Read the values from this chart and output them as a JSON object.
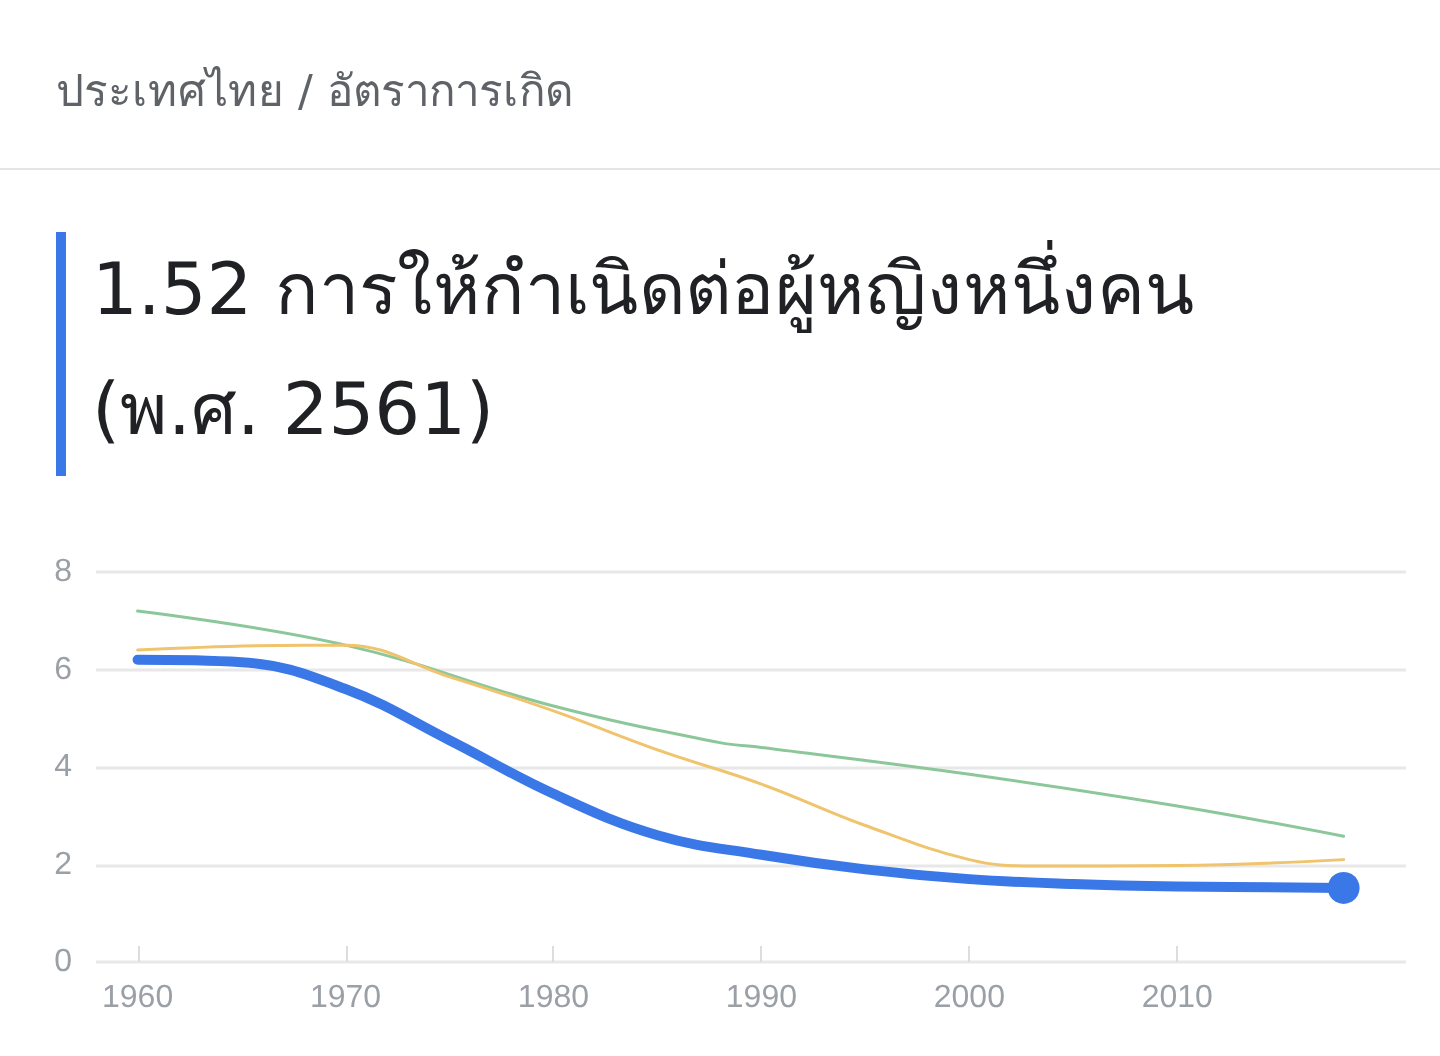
{
  "chart_data": {
    "type": "line",
    "subtitle": "ประเทศไทย / อัตราการเกิด",
    "title": "1.52 การให้กำเนิดต่อผู้หญิงหนึ่งคน (พ.ศ. 2561)",
    "series": [
      {
        "color": "#8cc79a",
        "x": [
          1960,
          1970,
          1980,
          1988,
          1990,
          2000,
          2010,
          2018
        ],
        "values": [
          7.2,
          6.5,
          5.25,
          4.5,
          4.4,
          3.85,
          3.2,
          2.58
        ]
      },
      {
        "color": "#f0c36d",
        "x": [
          1960,
          1968,
          1970,
          1975,
          1980,
          1985,
          1990,
          1995,
          2000,
          2003,
          2010,
          2018
        ],
        "values": [
          6.4,
          6.5,
          6.5,
          5.85,
          5.15,
          4.35,
          3.65,
          2.8,
          2.1,
          1.97,
          1.98,
          2.1
        ]
      },
      {
        "color": "#3b78e7",
        "x": [
          1960,
          1965,
          1970,
          1975,
          1980,
          1985,
          1990,
          1995,
          2000,
          2005,
          2010,
          2018
        ],
        "values": [
          6.2,
          6.15,
          5.6,
          4.55,
          3.45,
          2.6,
          2.2,
          1.9,
          1.7,
          1.6,
          1.55,
          1.52
        ]
      }
    ],
    "xlim": [
      1958,
      2021
    ],
    "xticks": [
      1960,
      1970,
      1980,
      1990,
      2000,
      2010
    ],
    "ylim": [
      0,
      8
    ],
    "yticks": [
      0,
      2,
      4,
      6,
      8
    ],
    "grid": "y"
  }
}
